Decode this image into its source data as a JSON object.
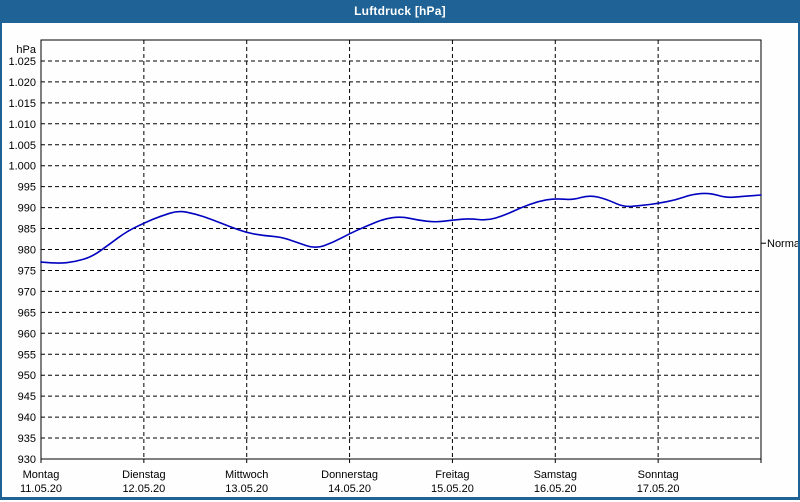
{
  "window": {
    "title": "Luftdruck [hPa]",
    "colors": {
      "title_bar": "#1E6296",
      "border": "#1E6296",
      "background": "#FDFEFD",
      "frame": "#000000",
      "grid": "#000000",
      "text": "#000000",
      "title_text": "#FFFFFF",
      "line": "#0000C0"
    }
  },
  "chart_data": {
    "type": "line",
    "title": "Luftdruck [hPa]",
    "y_unit_label": "hPa",
    "ylim": [
      930,
      1030
    ],
    "grid": {
      "style": "dashed",
      "y_step_hpa": 5,
      "x_step_hours": 24
    },
    "yticks": [
      {
        "value": 1025,
        "label": "1.025"
      },
      {
        "value": 1020,
        "label": "1.020"
      },
      {
        "value": 1015,
        "label": "1.015"
      },
      {
        "value": 1010,
        "label": "1.010"
      },
      {
        "value": 1005,
        "label": "1.005"
      },
      {
        "value": 1000,
        "label": "1.000"
      },
      {
        "value": 995,
        "label": "995"
      },
      {
        "value": 990,
        "label": "990"
      },
      {
        "value": 985,
        "label": "985"
      },
      {
        "value": 980,
        "label": "980"
      },
      {
        "value": 975,
        "label": "975"
      },
      {
        "value": 970,
        "label": "970"
      },
      {
        "value": 965,
        "label": "965"
      },
      {
        "value": 960,
        "label": "960"
      },
      {
        "value": 955,
        "label": "955"
      },
      {
        "value": 950,
        "label": "950"
      },
      {
        "value": 945,
        "label": "945"
      },
      {
        "value": 940,
        "label": "940"
      },
      {
        "value": 935,
        "label": "935"
      },
      {
        "value": 930,
        "label": "930"
      }
    ],
    "xlim_hours": [
      0,
      168
    ],
    "day_ticks": [
      {
        "hour": 0,
        "name": "Montag",
        "date": "11.05.20"
      },
      {
        "hour": 24,
        "name": "Dienstag",
        "date": "12.05.20"
      },
      {
        "hour": 48,
        "name": "Mittwoch",
        "date": "13.05.20"
      },
      {
        "hour": 72,
        "name": "Donnerstag",
        "date": "14.05.20"
      },
      {
        "hour": 96,
        "name": "Freitag",
        "date": "15.05.20"
      },
      {
        "hour": 120,
        "name": "Samstag",
        "date": "16.05.20"
      },
      {
        "hour": 144,
        "name": "Sonntag",
        "date": "17.05.20"
      }
    ],
    "series": [
      {
        "name": "Luftdruck",
        "color": "#0000C0",
        "x_hours": [
          0,
          4,
          8,
          12,
          16,
          20,
          24,
          28,
          32,
          36,
          40,
          44,
          48,
          52,
          56,
          60,
          64,
          68,
          72,
          76,
          80,
          84,
          88,
          92,
          96,
          100,
          104,
          108,
          112,
          116,
          120,
          124,
          128,
          132,
          136,
          140,
          144,
          148,
          152,
          156,
          160,
          164,
          168
        ],
        "values": [
          977.0,
          976.6,
          977.1,
          978.3,
          981.3,
          984.3,
          986.3,
          988.0,
          989.3,
          988.5,
          987.1,
          985.5,
          984.0,
          983.3,
          983.0,
          981.6,
          980.2,
          981.6,
          983.8,
          985.6,
          987.3,
          987.9,
          987.0,
          986.5,
          987.0,
          987.4,
          986.9,
          988.1,
          990.0,
          991.5,
          992.2,
          991.8,
          993.0,
          992.0,
          990.1,
          990.5,
          991.0,
          991.8,
          993.2,
          993.5,
          992.3,
          992.7,
          993.0
        ]
      }
    ],
    "annotations": [
      {
        "label": "Normal",
        "value": 981.5,
        "side": "right"
      }
    ]
  }
}
